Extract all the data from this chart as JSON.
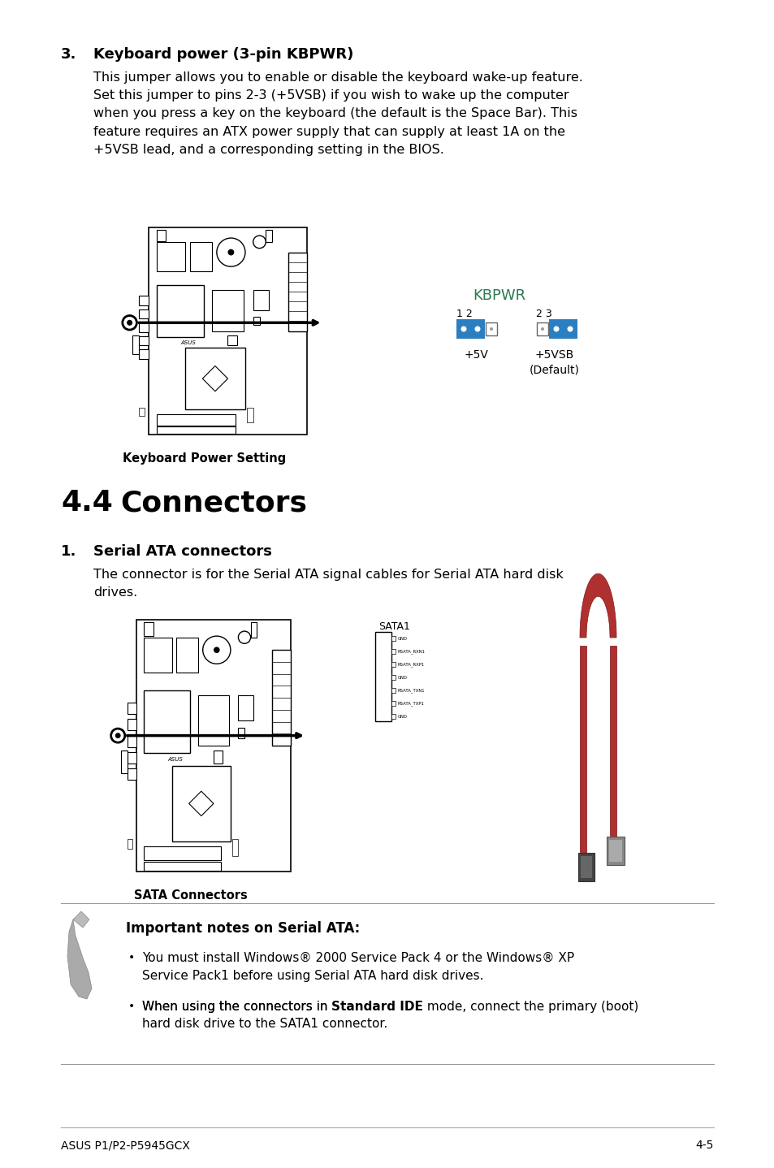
{
  "bg_color": "#ffffff",
  "blue_color": "#2b7fc1",
  "green_color": "#2d7a4f",
  "text_color": "#000000",
  "gray_line": "#aaaaaa",
  "footer_left": "ASUS P1/P2-P5945GCX",
  "footer_right": "4-5",
  "sata_pins": [
    "GND",
    "RSATA_RXN1",
    "RSATA_RXP1",
    "GND",
    "RSATA_TXN1",
    "RSATA_TXP1",
    "GND"
  ]
}
